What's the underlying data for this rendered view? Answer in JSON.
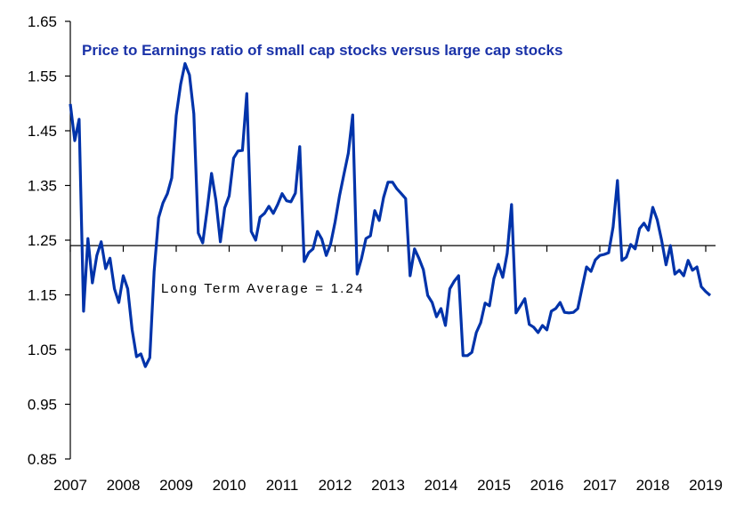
{
  "chart_data": {
    "type": "line",
    "title": "Price to Earnings ratio of small cap stocks versus large cap stocks",
    "xlabel": "",
    "ylabel": "",
    "ylim": [
      0.85,
      1.65
    ],
    "yticks": [
      "0.85",
      "0.95",
      "1.05",
      "1.15",
      "1.25",
      "1.35",
      "1.45",
      "1.55",
      "1.65"
    ],
    "xticks": [
      "2007",
      "2008",
      "2009",
      "2010",
      "2011",
      "2012",
      "2013",
      "2014",
      "2015",
      "2016",
      "2017",
      "2018",
      "2019"
    ],
    "grid": false,
    "legend": "none",
    "line_color": "#0033aa",
    "reference_line": {
      "value": 1.24,
      "label": "Long Term Average = 1.24"
    },
    "x": [
      "2007-01",
      "2007-02",
      "2007-03",
      "2007-04",
      "2007-05",
      "2007-06",
      "2007-07",
      "2007-08",
      "2007-09",
      "2007-10",
      "2007-11",
      "2007-12",
      "2008-01",
      "2008-02",
      "2008-03",
      "2008-04",
      "2008-05",
      "2008-06",
      "2008-07",
      "2008-08",
      "2008-09",
      "2008-10",
      "2008-11",
      "2008-12",
      "2009-01",
      "2009-02",
      "2009-03",
      "2009-04",
      "2009-05",
      "2009-06",
      "2009-07",
      "2009-08",
      "2009-09",
      "2009-10",
      "2009-11",
      "2009-12",
      "2010-01",
      "2010-02",
      "2010-03",
      "2010-04",
      "2010-05",
      "2010-06",
      "2010-07",
      "2010-08",
      "2010-09",
      "2010-10",
      "2010-11",
      "2010-12",
      "2011-01",
      "2011-02",
      "2011-03",
      "2011-04",
      "2011-05",
      "2011-06",
      "2011-07",
      "2011-08",
      "2011-09",
      "2011-10",
      "2011-11",
      "2011-12",
      "2012-01",
      "2012-02",
      "2012-03",
      "2012-04",
      "2012-05",
      "2012-06",
      "2012-07",
      "2012-08",
      "2012-09",
      "2012-10",
      "2012-11",
      "2012-12",
      "2013-01",
      "2013-02",
      "2013-03",
      "2013-04",
      "2013-05",
      "2013-06",
      "2013-07",
      "2013-08",
      "2013-09",
      "2013-10",
      "2013-11",
      "2013-12",
      "2014-01",
      "2014-02",
      "2014-03",
      "2014-04",
      "2014-05",
      "2014-06",
      "2014-07",
      "2014-08",
      "2014-09",
      "2014-10",
      "2014-11",
      "2014-12",
      "2015-01",
      "2015-02",
      "2015-03",
      "2015-04",
      "2015-05",
      "2015-06",
      "2015-07",
      "2015-08",
      "2015-09",
      "2015-10",
      "2015-11",
      "2015-12",
      "2016-01",
      "2016-02",
      "2016-03",
      "2016-04",
      "2016-05",
      "2016-06",
      "2016-07",
      "2016-08",
      "2016-09",
      "2016-10",
      "2016-11",
      "2016-12",
      "2017-01",
      "2017-02",
      "2017-03",
      "2017-04",
      "2017-05",
      "2017-06",
      "2017-07",
      "2017-08",
      "2017-09",
      "2017-10",
      "2017-11",
      "2017-12",
      "2018-01",
      "2018-02",
      "2018-03",
      "2018-04",
      "2018-05",
      "2018-06",
      "2018-07",
      "2018-08",
      "2018-09",
      "2018-10",
      "2018-11",
      "2018-12",
      "2019-01",
      "2019-02"
    ],
    "values": [
      1.499,
      1.432,
      1.471,
      1.12,
      1.253,
      1.172,
      1.222,
      1.247,
      1.198,
      1.217,
      1.161,
      1.136,
      1.185,
      1.161,
      1.087,
      1.037,
      1.042,
      1.019,
      1.035,
      1.193,
      1.291,
      1.318,
      1.335,
      1.364,
      1.478,
      1.535,
      1.573,
      1.552,
      1.481,
      1.263,
      1.245,
      1.305,
      1.372,
      1.323,
      1.247,
      1.309,
      1.331,
      1.4,
      1.413,
      1.414,
      1.518,
      1.266,
      1.25,
      1.292,
      1.299,
      1.312,
      1.299,
      1.315,
      1.335,
      1.322,
      1.32,
      1.336,
      1.421,
      1.211,
      1.227,
      1.234,
      1.266,
      1.252,
      1.222,
      1.243,
      1.283,
      1.331,
      1.37,
      1.409,
      1.479,
      1.188,
      1.217,
      1.253,
      1.258,
      1.304,
      1.286,
      1.328,
      1.356,
      1.356,
      1.344,
      1.335,
      1.326,
      1.185,
      1.234,
      1.217,
      1.196,
      1.149,
      1.136,
      1.11,
      1.125,
      1.094,
      1.161,
      1.175,
      1.185,
      1.039,
      1.039,
      1.045,
      1.081,
      1.099,
      1.135,
      1.13,
      1.18,
      1.206,
      1.182,
      1.226,
      1.315,
      1.117,
      1.13,
      1.143,
      1.096,
      1.091,
      1.081,
      1.094,
      1.086,
      1.12,
      1.125,
      1.136,
      1.118,
      1.117,
      1.118,
      1.125,
      1.164,
      1.201,
      1.193,
      1.214,
      1.222,
      1.224,
      1.227,
      1.274,
      1.359,
      1.213,
      1.219,
      1.242,
      1.234,
      1.271,
      1.281,
      1.268,
      1.31,
      1.287,
      1.25,
      1.205,
      1.24,
      1.188,
      1.195,
      1.185,
      1.213,
      1.195,
      1.201,
      1.165,
      1.156,
      1.149
    ]
  }
}
